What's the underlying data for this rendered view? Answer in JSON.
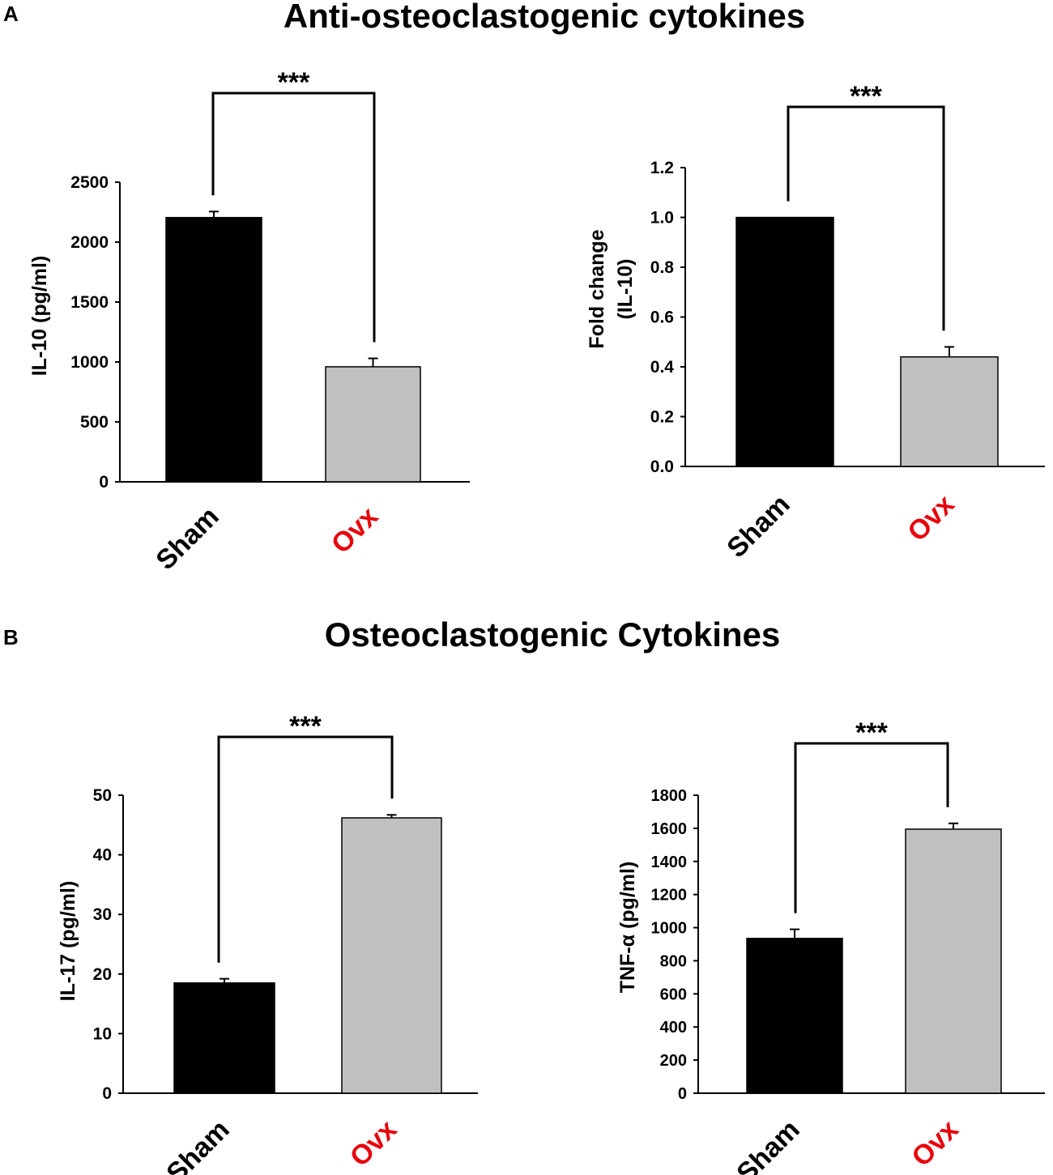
{
  "panels": [
    {
      "letter": "A",
      "title": "Anti-osteoclastogenic cytokines"
    },
    {
      "letter": "B",
      "title": "Osteoclastogenic Cytokines"
    }
  ],
  "colors": {
    "sham_bar": "#000000",
    "ovx_bar": "#c0c0c0",
    "sham_label": "#000000",
    "ovx_label": "#e8000b"
  },
  "chart_data": [
    {
      "type": "bar",
      "panel": "A",
      "title": "",
      "categories": [
        "Sham",
        "Ovx"
      ],
      "values": [
        2205,
        960
      ],
      "errors": [
        50,
        70
      ],
      "ylabel": [
        "IL-10 (pg/ml)"
      ],
      "ylim": [
        0,
        2500
      ],
      "yticks": [
        0,
        500,
        1000,
        1500,
        2000,
        2500
      ],
      "tick_labels": [
        "0",
        "500",
        "1000",
        "1500",
        "2000",
        "2500"
      ],
      "significance": "***"
    },
    {
      "type": "bar",
      "panel": "A",
      "title": "",
      "categories": [
        "Sham",
        "Ovx"
      ],
      "values": [
        1.0,
        0.44
      ],
      "errors": [
        0,
        0.04
      ],
      "ylabel": [
        "Fold change",
        "(IL-10)"
      ],
      "ylim": [
        0,
        1.2
      ],
      "yticks": [
        0,
        0.2,
        0.4,
        0.6,
        0.8,
        1.0,
        1.2
      ],
      "tick_labels": [
        "0.0",
        "0.2",
        "0.4",
        "0.6",
        "0.8",
        "1.0",
        "1.2"
      ],
      "significance": "***"
    },
    {
      "type": "bar",
      "panel": "B",
      "title": "",
      "categories": [
        "Sham",
        "Ovx"
      ],
      "values": [
        18.5,
        46.2
      ],
      "errors": [
        0.7,
        0.5
      ],
      "ylabel": [
        "IL-17 (pg/ml)"
      ],
      "ylim": [
        0,
        50
      ],
      "yticks": [
        0,
        10,
        20,
        30,
        40,
        50
      ],
      "tick_labels": [
        "0",
        "10",
        "20",
        "30",
        "40",
        "50"
      ],
      "significance": "***"
    },
    {
      "type": "bar",
      "panel": "B",
      "title": "",
      "categories": [
        "Sham",
        "Ovx"
      ],
      "values": [
        935,
        1595
      ],
      "errors": [
        55,
        35
      ],
      "ylabel": [
        "TNF-α (pg/ml)"
      ],
      "ylim": [
        0,
        1800
      ],
      "yticks": [
        0,
        200,
        400,
        600,
        800,
        1000,
        1200,
        1400,
        1600,
        1800
      ],
      "tick_labels": [
        "0",
        "200",
        "400",
        "600",
        "800",
        "1000",
        "1200",
        "1400",
        "1600",
        "1800"
      ],
      "significance": "***"
    }
  ]
}
